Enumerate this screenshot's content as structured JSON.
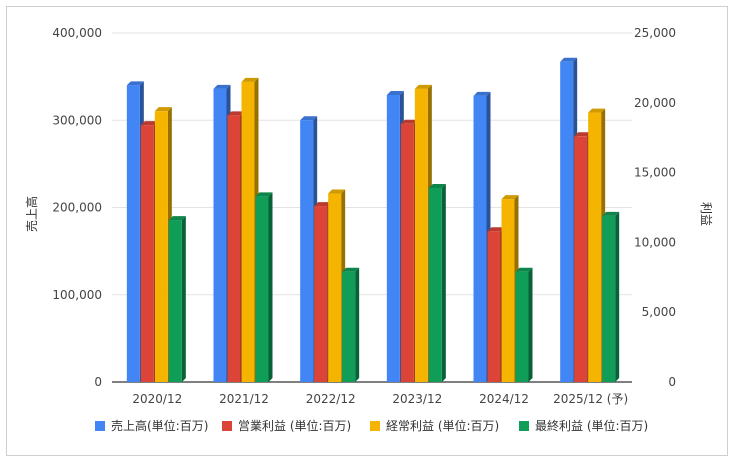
{
  "chart_data": {
    "type": "bar",
    "categories": [
      "2020/12",
      "2021/12",
      "2022/12",
      "2023/12",
      "2024/12",
      "2025/12 (予)"
    ],
    "series": [
      {
        "name": "売上高(単位:百万)",
        "axis": "left",
        "color": "#4285f4",
        "values": [
          340000,
          336000,
          300000,
          329000,
          328000,
          367000
        ]
      },
      {
        "name": "営業利益 (単位:百万)",
        "axis": "right",
        "color": "#db4437",
        "values": [
          18400,
          19100,
          12600,
          18500,
          10800,
          17600
        ]
      },
      {
        "name": "経常利益 (単位:百万)",
        "axis": "right",
        "color": "#f4b400",
        "values": [
          19400,
          21500,
          13500,
          21000,
          13100,
          19300
        ]
      },
      {
        "name": "最終利益 (単位:百万)",
        "axis": "right",
        "color": "#0f9d58",
        "values": [
          11600,
          13300,
          7900,
          13900,
          7900,
          11900
        ]
      }
    ],
    "ylabel_left": "売上高",
    "ylabel_right": "利益",
    "ylim_left": [
      0,
      400000
    ],
    "ylim_right": [
      0,
      25000
    ],
    "yticks_left": [
      "0",
      "100,000",
      "200,000",
      "300,000",
      "400,000"
    ],
    "yticks_right": [
      "0",
      "5,000",
      "10,000",
      "15,000",
      "20,000",
      "25,000"
    ],
    "grid": true,
    "legend_position": "bottom"
  }
}
